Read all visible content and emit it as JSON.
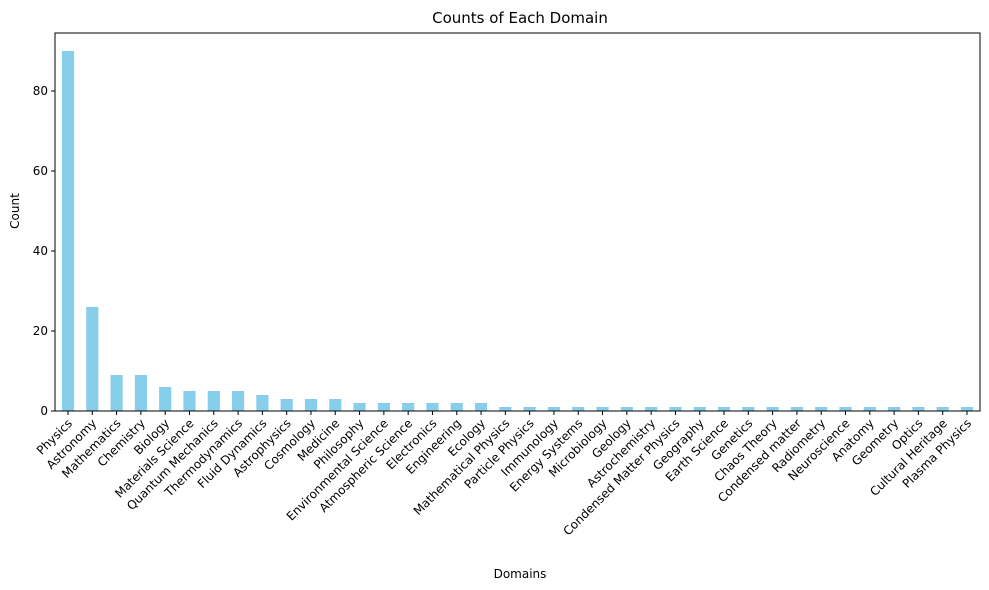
{
  "chart_data": {
    "type": "bar",
    "title": "Counts of Each Domain",
    "xlabel": "Domains",
    "ylabel": "Count",
    "ylim": [
      0,
      94.5
    ],
    "yticks": [
      0,
      20,
      40,
      60,
      80
    ],
    "grid": false,
    "bar_color": "#87ceeb",
    "categories": [
      "Physics",
      "Astronomy",
      "Mathematics",
      "Chemistry",
      "Biology",
      "Materials Science",
      "Quantum Mechanics",
      "Thermodynamics",
      "Fluid Dynamics",
      "Astrophysics",
      "Cosmology",
      "Medicine",
      "Philosophy",
      "Environmental Science",
      "Atmospheric Science",
      "Electronics",
      "Engineering",
      "Ecology",
      "Mathematical Physics",
      "Particle Physics",
      "Immunology",
      "Energy Systems",
      "Microbiology",
      "Geology",
      "Astrochemistry",
      "Condensed Matter Physics",
      "Geography",
      "Earth Science",
      "Genetics",
      "Chaos Theory",
      "Condensed matter",
      "Radiometry",
      "Neuroscience",
      "Anatomy",
      "Geometry",
      "Optics",
      "Cultural Heritage",
      "Plasma Physics"
    ],
    "values": [
      90,
      26,
      9,
      9,
      6,
      5,
      5,
      5,
      4,
      3,
      3,
      3,
      2,
      2,
      2,
      2,
      2,
      2,
      1,
      1,
      1,
      1,
      1,
      1,
      1,
      1,
      1,
      1,
      1,
      1,
      1,
      1,
      1,
      1,
      1,
      1,
      1,
      1
    ]
  }
}
